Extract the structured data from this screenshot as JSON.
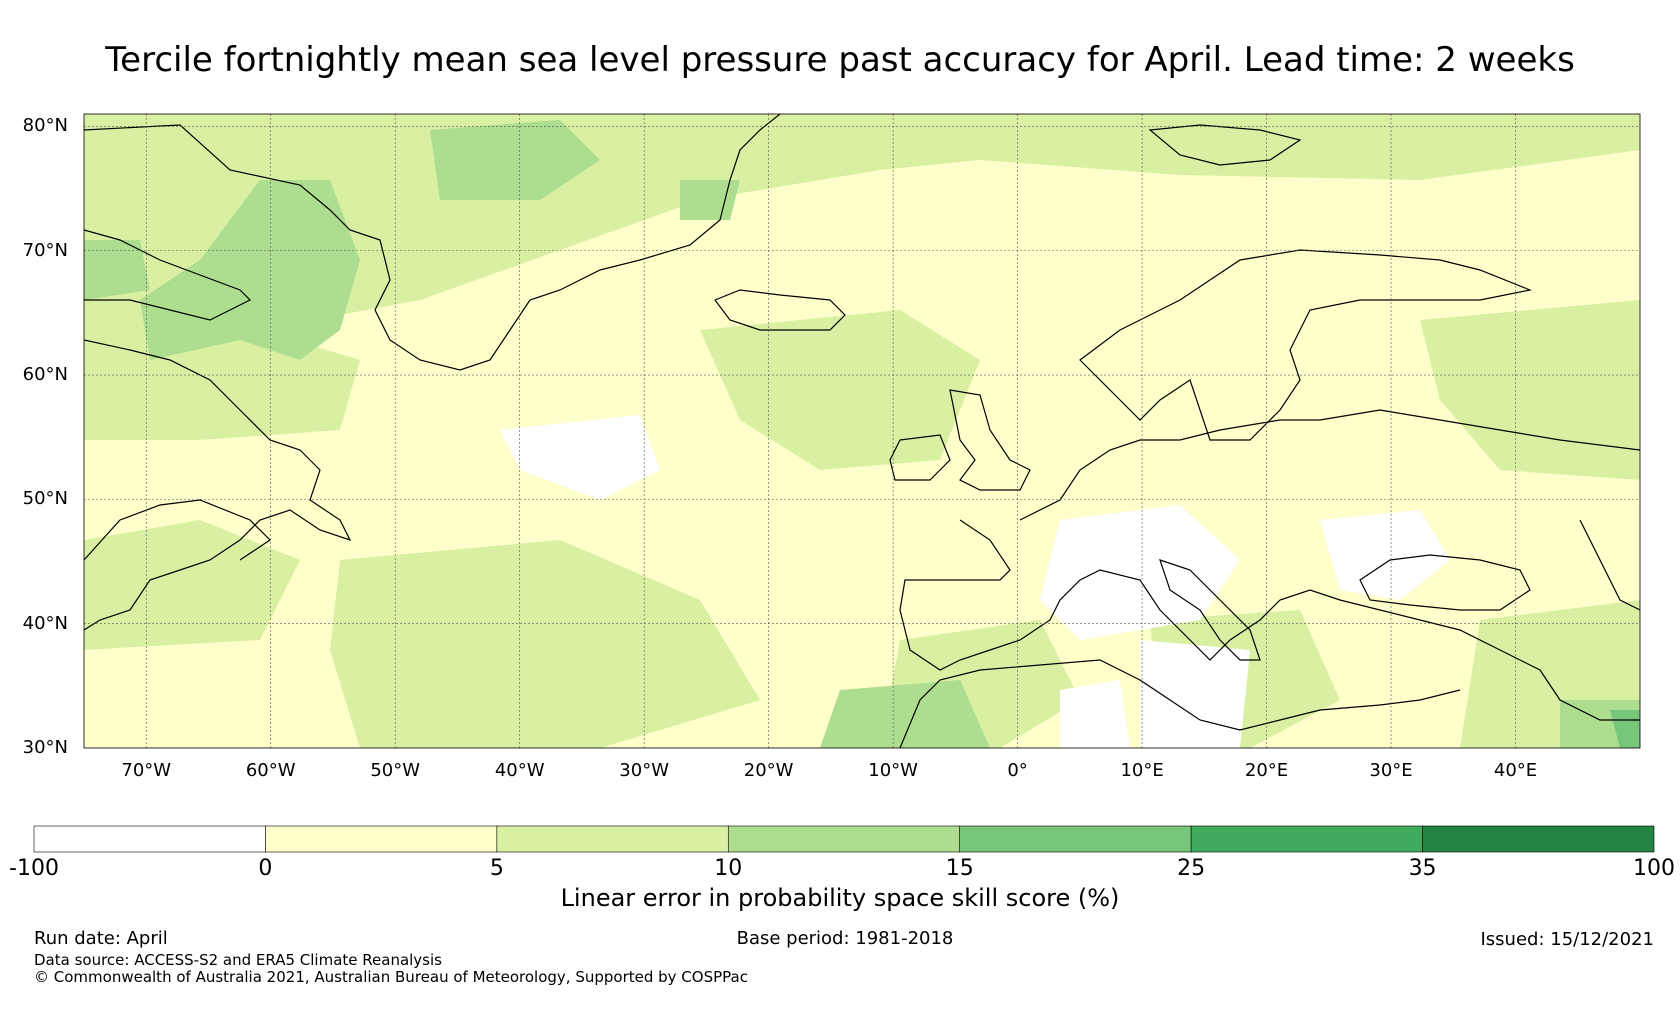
{
  "title": "Tercile fortnightly mean sea level pressure past accuracy for April. Lead time: 2 weeks",
  "map": {
    "lat_ticks": [
      "80°N",
      "70°N",
      "60°N",
      "50°N",
      "40°N",
      "30°N"
    ],
    "lat_values": [
      80,
      70,
      60,
      50,
      40,
      30
    ],
    "lon_ticks": [
      "70°W",
      "60°W",
      "50°W",
      "40°W",
      "30°W",
      "20°W",
      "10°W",
      "0°",
      "10°E",
      "20°E",
      "30°E",
      "40°E"
    ],
    "lon_values": [
      -70,
      -60,
      -50,
      -40,
      -30,
      -20,
      -10,
      0,
      10,
      20,
      30,
      40
    ],
    "extent": {
      "lon_min": -75,
      "lon_max": 50,
      "lat_min": 30,
      "lat_max": 81
    },
    "ocean_color": "#ffffcc",
    "land_color": "#ffffcc",
    "coastline_color": "#000000",
    "grid": true
  },
  "colorbar": {
    "boundaries": [
      "-100",
      "0",
      "5",
      "10",
      "15",
      "25",
      "35",
      "100"
    ],
    "colors": [
      "#ffffff",
      "#ffffcc",
      "#d9f0a3",
      "#addd8e",
      "#78c679",
      "#41ab5d",
      "#238443"
    ],
    "label": "Linear error in probability space skill score (%)"
  },
  "footer": {
    "run_date": "Run date: April",
    "base_period": "Base period: 1981-2018",
    "issued": "Issued: 15/12/2021",
    "data_source": "Data source: ACCESS-S2 and ERA5 Climate Reanalysis",
    "copyright": "© Commonwealth of Australia 2021, Australian Bureau of Meteorology, Supported by COSPPac"
  }
}
